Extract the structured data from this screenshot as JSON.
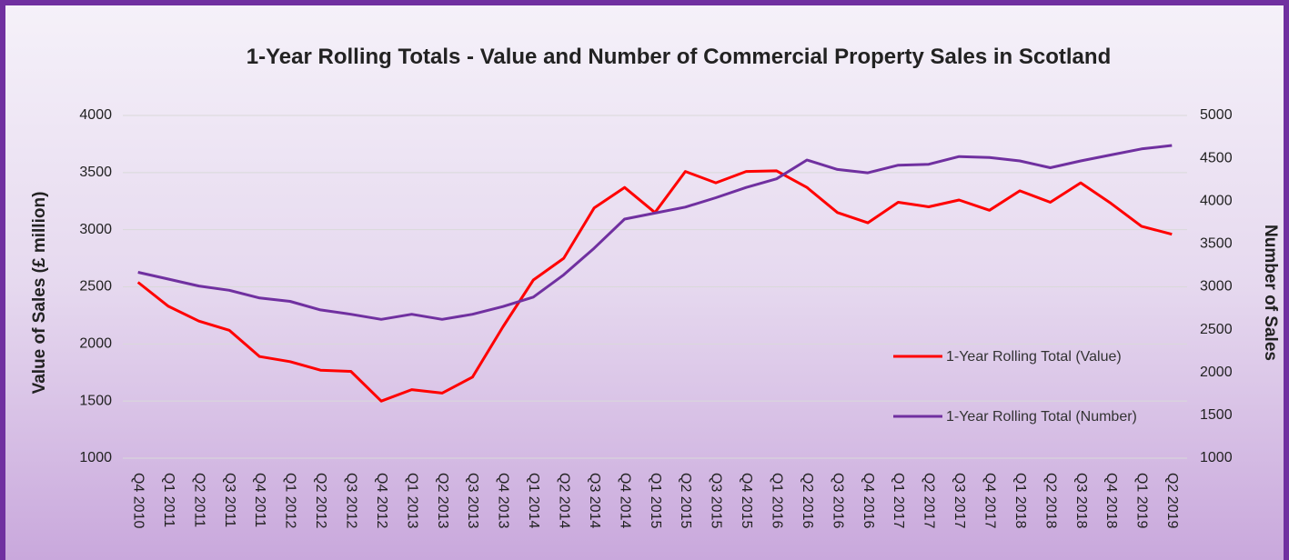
{
  "chart_data": {
    "type": "line",
    "title": "1-Year Rolling Totals - Value and Number of Commercial Property Sales in Scotland",
    "y_label": "Value of Sales (£ million)",
    "y2_label": "Number of Sales",
    "categories": [
      "Q4 2010",
      "Q1 2011",
      "Q2 2011",
      "Q3 2011",
      "Q4 2011",
      "Q1 2012",
      "Q2 2012",
      "Q3 2012",
      "Q4 2012",
      "Q1 2013",
      "Q2 2013",
      "Q3 2013",
      "Q4 2013",
      "Q1 2014",
      "Q2 2014",
      "Q3 2014",
      "Q4 2014",
      "Q1 2015",
      "Q2 2015",
      "Q3 2015",
      "Q4 2015",
      "Q1 2016",
      "Q2 2016",
      "Q3 2016",
      "Q4 2016",
      "Q1 2017",
      "Q2 2017",
      "Q3 2017",
      "Q4 2017",
      "Q1 2018",
      "Q2 2018",
      "Q3 2018",
      "Q4 2018",
      "Q1 2019",
      "Q2 2019"
    ],
    "series": [
      {
        "name": "1-Year Rolling Total (Value)",
        "color": "#ff0000",
        "axis": "y",
        "values": [
          2540,
          2330,
          2200,
          2120,
          1890,
          1845,
          1770,
          1760,
          1500,
          1600,
          1570,
          1710,
          2150,
          2560,
          2750,
          3190,
          3370,
          3150,
          3510,
          3410,
          3510,
          3515,
          3370,
          3150,
          3060,
          3240,
          3200,
          3260,
          3170,
          3340,
          3240,
          3410,
          3230,
          3030,
          2960
        ]
      },
      {
        "name": "1-Year Rolling Total (Number)",
        "color": "#7030a0",
        "axis": "y2",
        "values": [
          3170,
          3090,
          3010,
          2960,
          2870,
          2830,
          2730,
          2680,
          2620,
          2680,
          2620,
          2680,
          2770,
          2880,
          3140,
          3450,
          3790,
          3860,
          3930,
          4040,
          4160,
          4260,
          4480,
          4370,
          4330,
          4420,
          4430,
          4520,
          4510,
          4470,
          4390,
          4470,
          4540,
          4610,
          4650
        ]
      }
    ],
    "ylim": [
      1000,
      4000
    ],
    "yticks": [
      1000,
      1500,
      2000,
      2500,
      3000,
      3500,
      4000
    ],
    "y2lim": [
      1000,
      5000
    ],
    "y2ticks": [
      1000,
      1500,
      2000,
      2500,
      3000,
      3500,
      4000,
      4500,
      5000
    ],
    "grid": true,
    "legend": "right"
  }
}
